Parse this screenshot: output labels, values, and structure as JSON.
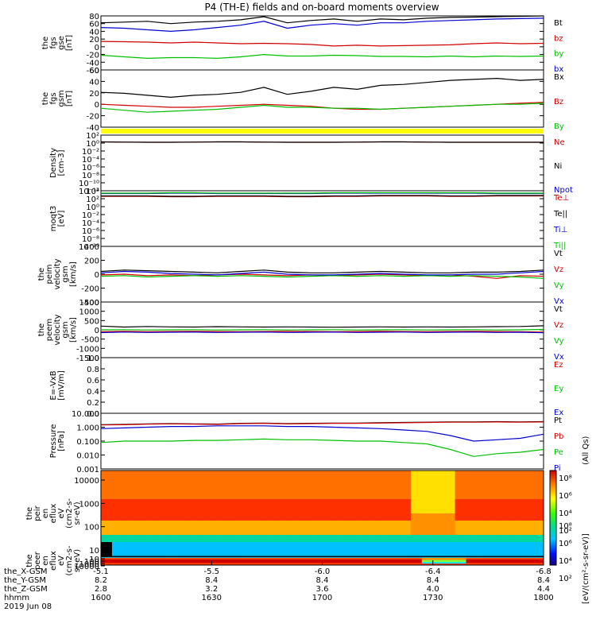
{
  "title": "P4 (TH-E) fields and on-board moments overview",
  "chart_data": [
    {
      "type": "line",
      "ylabel": [
        "the",
        "fgs",
        "gse",
        "[nT]"
      ],
      "yticks": [
        "80",
        "60",
        "40",
        "20",
        "0",
        "-20",
        "-40",
        "-60"
      ],
      "ylim": [
        -60,
        80
      ],
      "grid": false,
      "legend": "right",
      "series": [
        {
          "name": "Bt",
          "color": "#000000",
          "values": [
            62,
            64,
            66,
            60,
            64,
            66,
            70,
            78,
            62,
            68,
            72,
            66,
            72,
            70,
            74,
            76,
            77,
            78,
            79,
            80
          ]
        },
        {
          "name": "bz",
          "color": "#d00000",
          "values": [
            14,
            13,
            12,
            10,
            12,
            10,
            8,
            9,
            8,
            6,
            2,
            4,
            2,
            3,
            4,
            5,
            8,
            10,
            8,
            9
          ]
        },
        {
          "name": "by",
          "color": "#00c000",
          "values": [
            -22,
            -26,
            -30,
            -28,
            -28,
            -30,
            -26,
            -20,
            -24,
            -24,
            -22,
            -23,
            -25,
            -25,
            -26,
            -24,
            -26,
            -24,
            -25,
            -24
          ]
        },
        {
          "name": "bx",
          "color": "#0000d0",
          "values": [
            50,
            48,
            44,
            40,
            44,
            50,
            56,
            66,
            48,
            56,
            60,
            56,
            62,
            62,
            66,
            68,
            70,
            72,
            73,
            74
          ]
        }
      ]
    },
    {
      "type": "line",
      "ylabel": [
        "the",
        "fgs",
        "gsm",
        "[nT]"
      ],
      "yticks": [
        "60",
        "40",
        "20",
        "0",
        "-20",
        "-40"
      ],
      "ylim": [
        -50,
        65
      ],
      "grid": false,
      "legend": "right",
      "series": [
        {
          "name": "Bx",
          "color": "#000000",
          "values": [
            20,
            18,
            14,
            10,
            14,
            16,
            20,
            30,
            16,
            22,
            30,
            26,
            34,
            36,
            40,
            44,
            46,
            48,
            44,
            46
          ]
        },
        {
          "name": "Bz",
          "color": "#d00000",
          "values": [
            -4,
            -6,
            -8,
            -10,
            -10,
            -8,
            -6,
            -4,
            -6,
            -8,
            -12,
            -14,
            -14,
            -12,
            -10,
            -8,
            -6,
            -4,
            -2,
            0
          ]
        },
        {
          "name": "By",
          "color": "#00c000",
          "values": [
            -12,
            -16,
            -20,
            -18,
            -16,
            -14,
            -10,
            -6,
            -10,
            -10,
            -12,
            -12,
            -14,
            -12,
            -10,
            -8,
            -6,
            -4,
            -4,
            -2
          ]
        }
      ]
    },
    {
      "type": "line",
      "ylabel": [
        "Density",
        "[cm-3]"
      ],
      "yticks": [
        "10²",
        "10⁰",
        "10⁻²",
        "10⁻⁴",
        "10⁻⁶",
        "10⁻⁸",
        "10⁻¹⁰",
        "10⁻¹²"
      ],
      "ylim": [
        -12,
        2
      ],
      "scale": "log",
      "legend": "right",
      "series": [
        {
          "name": "Ne",
          "color": "#d00000",
          "values": [
            0.3,
            0.25,
            0.2,
            0.2,
            0.25,
            0.3,
            0.3,
            0.25,
            0.2,
            0.2,
            0.2,
            0.25,
            0.3,
            0.3,
            0.25,
            0.2,
            0.2,
            0.2,
            0.2,
            0.2
          ]
        },
        {
          "name": "Ni",
          "color": "#000000",
          "values": [
            0.3,
            0.25,
            0.2,
            0.2,
            0.25,
            0.3,
            0.3,
            0.25,
            0.2,
            0.2,
            0.2,
            0.25,
            0.3,
            0.3,
            0.25,
            0.2,
            0.2,
            0.2,
            0.2,
            0.2
          ]
        },
        {
          "name": "Npot",
          "color": "#0000d0",
          "values": []
        }
      ]
    },
    {
      "type": "line",
      "ylabel": [
        "moqt3",
        "[eV]"
      ],
      "yticks": [
        "10⁴",
        "10²",
        "10⁰",
        "10⁻²",
        "10⁻⁴",
        "10⁻⁶",
        "10⁻⁸",
        "10⁻¹⁰"
      ],
      "ylim": [
        -10,
        4
      ],
      "scale": "log",
      "legend": "right",
      "series": [
        {
          "name": "Te⊥",
          "color": "#d00000",
          "values": [
            2.6,
            2.6,
            2.6,
            2.5,
            2.5,
            2.6,
            2.6,
            2.6,
            2.5,
            2.5,
            2.6,
            2.6,
            2.7,
            2.7,
            2.7,
            2.6,
            2.6,
            2.7,
            2.7,
            2.7
          ]
        },
        {
          "name": "Te||",
          "color": "#000000",
          "values": [
            2.7,
            2.7,
            2.7,
            2.6,
            2.6,
            2.7,
            2.7,
            2.7,
            2.6,
            2.6,
            2.7,
            2.7,
            2.8,
            2.8,
            2.8,
            2.7,
            2.7,
            2.8,
            2.8,
            2.8
          ]
        },
        {
          "name": "Ti⊥",
          "color": "#0000d0",
          "values": [
            3.3,
            3.3,
            3.3,
            3.4,
            3.4,
            3.3,
            3.3,
            3.3,
            3.3,
            3.3,
            3.4,
            3.4,
            3.4,
            3.4,
            3.4,
            3.4,
            3.4,
            3.3,
            3.3,
            3.3
          ]
        },
        {
          "name": "Ti||",
          "color": "#00c000",
          "values": [
            3.4,
            3.4,
            3.4,
            3.5,
            3.5,
            3.4,
            3.4,
            3.4,
            3.4,
            3.4,
            3.5,
            3.5,
            3.5,
            3.5,
            3.5,
            3.5,
            3.5,
            3.4,
            3.4,
            3.4
          ]
        }
      ]
    },
    {
      "type": "line",
      "ylabel": [
        "the",
        "peim",
        "velocity",
        "gsm",
        "[km/s]"
      ],
      "yticks": [
        "400",
        "200",
        "0",
        "-200",
        "-400"
      ],
      "ylim": [
        -400,
        400
      ],
      "legend": "right",
      "series": [
        {
          "name": "Vt",
          "color": "#000000",
          "values": [
            40,
            60,
            50,
            40,
            30,
            20,
            40,
            60,
            30,
            20,
            20,
            30,
            40,
            30,
            20,
            20,
            30,
            30,
            40,
            60
          ]
        },
        {
          "name": "Vz",
          "color": "#d00000",
          "values": [
            -10,
            0,
            -20,
            -10,
            -20,
            -10,
            0,
            -10,
            -20,
            -10,
            -20,
            -10,
            0,
            -10,
            -20,
            -10,
            -30,
            -60,
            -20,
            -30
          ]
        },
        {
          "name": "Vy",
          "color": "#00c000",
          "values": [
            -30,
            -20,
            -40,
            -30,
            -20,
            -30,
            -20,
            -30,
            -40,
            -30,
            -20,
            -30,
            -20,
            -30,
            -20,
            -30,
            -20,
            -30,
            -40,
            -60
          ]
        },
        {
          "name": "Vx",
          "color": "#0000d0",
          "values": [
            20,
            40,
            30,
            10,
            0,
            -10,
            10,
            30,
            0,
            -10,
            -10,
            0,
            10,
            0,
            -10,
            -10,
            0,
            0,
            20,
            40
          ]
        }
      ]
    },
    {
      "type": "line",
      "ylabel": [
        "the",
        "peem",
        "velocity",
        "gsm",
        "[km/s]"
      ],
      "yticks": [
        "1500",
        "1000",
        "500",
        "0",
        "-500",
        "-1000",
        "-1500"
      ],
      "ylim": [
        -1500,
        1500
      ],
      "legend": "right",
      "series": [
        {
          "name": "Vt",
          "color": "#000000",
          "values": [
            200,
            150,
            180,
            160,
            150,
            170,
            160,
            150,
            160,
            150,
            140,
            150,
            160,
            150,
            160,
            150,
            160,
            170,
            180,
            220
          ]
        },
        {
          "name": "Vz",
          "color": "#d00000",
          "values": [
            -100,
            -80,
            -100,
            -90,
            -80,
            -90,
            -100,
            -90,
            -80,
            -90,
            -100,
            -90,
            -80,
            -90,
            -100,
            -90,
            -80,
            -90,
            -100,
            -120
          ]
        },
        {
          "name": "Vy",
          "color": "#00c000",
          "values": [
            0,
            10,
            -10,
            0,
            10,
            -10,
            0,
            10,
            -10,
            0,
            10,
            -10,
            0,
            10,
            -10,
            0,
            10,
            -10,
            0,
            20
          ]
        },
        {
          "name": "Vx",
          "color": "#0000d0",
          "values": [
            -150,
            -120,
            -140,
            -130,
            -120,
            -140,
            -130,
            -120,
            -140,
            -130,
            -120,
            -140,
            -130,
            -120,
            -140,
            -130,
            -120,
            -140,
            -130,
            -160
          ]
        }
      ]
    },
    {
      "type": "line",
      "ylabel": [
        "E=-VxB",
        "[mV/m]"
      ],
      "yticks": [
        "1.0",
        "0.8",
        "0.6",
        "0.4",
        "0.2",
        "0.0"
      ],
      "ylim": [
        0,
        1
      ],
      "legend": "right",
      "series": [
        {
          "name": "Ez",
          "color": "#d00000",
          "values": []
        },
        {
          "name": "Ey",
          "color": "#00c000",
          "values": []
        },
        {
          "name": "Ex",
          "color": "#0000d0",
          "values": []
        }
      ]
    },
    {
      "type": "line",
      "ylabel": [
        "Pressure",
        "[nPa]"
      ],
      "yticks": [
        "10.000",
        "1.000",
        "0.100",
        "0.010",
        "0.001"
      ],
      "ylim": [
        -3,
        1
      ],
      "scale": "log",
      "legend": "right",
      "series": [
        {
          "name": "Pt",
          "color": "#000000",
          "values": [
            0.18,
            0.2,
            0.24,
            0.26,
            0.24,
            0.22,
            0.28,
            0.3,
            0.26,
            0.28,
            0.3,
            0.3,
            0.32,
            0.34,
            0.36,
            0.38,
            0.38,
            0.4,
            0.38,
            0.4
          ]
        },
        {
          "name": "Pb",
          "color": "#d00000",
          "values": [
            0.16,
            0.18,
            0.22,
            0.24,
            0.22,
            0.2,
            0.26,
            0.28,
            0.24,
            0.26,
            0.28,
            0.28,
            0.3,
            0.32,
            0.34,
            0.36,
            0.36,
            0.38,
            0.36,
            0.38
          ]
        },
        {
          "name": "Pe",
          "color": "#00c000",
          "values": [
            -1.1,
            -1.0,
            -1.0,
            -1.0,
            -0.95,
            -0.95,
            -0.9,
            -0.85,
            -0.9,
            -0.9,
            -0.95,
            -1.0,
            -1.0,
            -1.1,
            -1.2,
            -1.6,
            -2.1,
            -1.9,
            -1.8,
            -1.6
          ]
        },
        {
          "name": "Pi",
          "color": "#0000d0",
          "values": [
            -0.1,
            -0.05,
            0,
            0.05,
            0.05,
            0.1,
            0.1,
            0.1,
            0.05,
            0.05,
            0,
            -0.05,
            -0.1,
            -0.2,
            -0.3,
            -0.6,
            -1.0,
            -0.9,
            -0.8,
            -0.5
          ]
        }
      ]
    },
    {
      "type": "heatmap",
      "ylabel": [
        "the",
        "peir",
        "en",
        "eflux",
        "eV",
        "(cm2-s-",
        "sr-eV)"
      ],
      "yticks": [
        "10000",
        "1000",
        "100",
        "10"
      ],
      "scale": "log"
    },
    {
      "type": "heatmap",
      "ylabel": [
        "the",
        "peer",
        "en",
        "eflux",
        "eV",
        "(cm2-s-",
        "sr-eV)"
      ],
      "yticks": [
        "10000",
        "1000",
        "100",
        "10"
      ],
      "scale": "log"
    }
  ],
  "colorbar": {
    "ticks": [
      "10⁸",
      "10⁶",
      "10⁴",
      "10²"
    ],
    "label": "[eV/(cm²-s-sr-eV)]",
    "label2": "(All Qs)"
  },
  "xaxis": {
    "rows": [
      {
        "label": "the_X-GSM",
        "values": [
          "-5.1",
          "-5.5",
          "-6.0",
          "-6.4",
          "-6.8"
        ]
      },
      {
        "label": "the_Y-GSM",
        "values": [
          "8.2",
          "8.4",
          "8.4",
          "8.4",
          "8.4"
        ]
      },
      {
        "label": "the_Z-GSM",
        "values": [
          "2.8",
          "3.2",
          "3.6",
          "4.0",
          "4.4"
        ]
      },
      {
        "label": "hhmm",
        "values": [
          "1600",
          "1630",
          "1700",
          "1730",
          "1800"
        ]
      }
    ],
    "date": "2019 Jun 08"
  }
}
